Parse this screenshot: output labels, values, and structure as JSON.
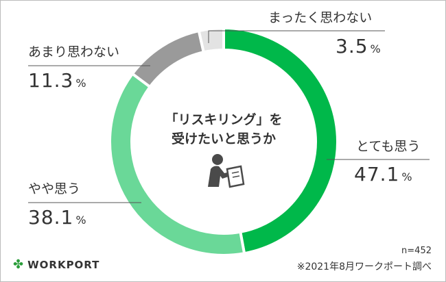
{
  "chart_data": {
    "type": "pie",
    "title": "「リスキリング」を受けたいと思うか",
    "title_lines": [
      "「リスキリング」を",
      "受けたいと思うか"
    ],
    "donut": true,
    "slices": [
      {
        "label": "とても思う",
        "value": 47.1,
        "pct_text": "47.1",
        "color": "#00b84a"
      },
      {
        "label": "やや思う",
        "value": 38.1,
        "pct_text": "38.1",
        "color": "#6ad898"
      },
      {
        "label": "あまり思わない",
        "value": 11.3,
        "pct_text": "11.3",
        "color": "#9a9a9a"
      },
      {
        "label": "まったく思わない",
        "value": 3.5,
        "pct_text": "3.5",
        "color": "#e3e3e3"
      }
    ],
    "unit": "%"
  },
  "footer": {
    "n": "n=452",
    "source": "※2021年8月ワークポート調べ",
    "logo": "WORKPORT"
  }
}
